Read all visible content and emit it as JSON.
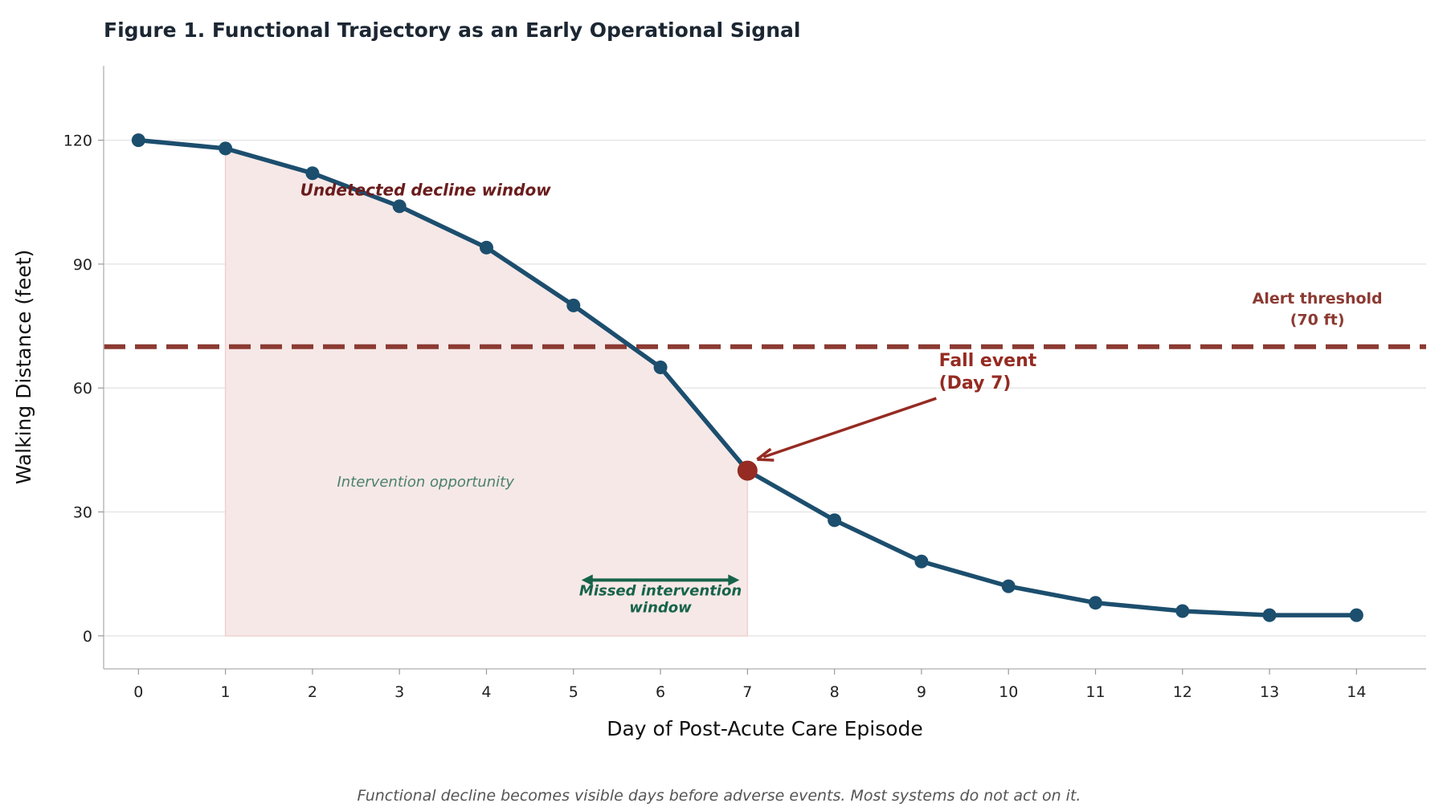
{
  "chart_data": {
    "type": "line",
    "title": "Figure 1.  Functional Trajectory as an Early Operational Signal",
    "xlabel": "Day of Post-Acute Care Episode",
    "ylabel": "Walking Distance (feet)",
    "x": [
      0,
      1,
      2,
      3,
      4,
      5,
      6,
      7,
      8,
      9,
      10,
      11,
      12,
      13,
      14
    ],
    "values": [
      120,
      118,
      112,
      104,
      94,
      80,
      65,
      40,
      28,
      18,
      12,
      8,
      6,
      5,
      5
    ],
    "xlim": [
      -0.4,
      14.8
    ],
    "ylim": [
      -8,
      138
    ],
    "xticks": [
      "0",
      "1",
      "2",
      "3",
      "4",
      "5",
      "6",
      "7",
      "8",
      "9",
      "10",
      "11",
      "12",
      "13",
      "14"
    ],
    "yticks": [
      "0",
      "30",
      "60",
      "90",
      "120"
    ],
    "grid": "horizontal",
    "threshold": {
      "value": 70,
      "label_line1": "Alert threshold",
      "label_line2": "(70 ft)",
      "color": "#8b3a32"
    },
    "shaded_region": {
      "from_day": 1,
      "to_day": 7,
      "color": "#f6e8e7"
    },
    "event": {
      "day": 7,
      "value": 40,
      "label_line1": "Fall event",
      "label_line2": "(Day 7)",
      "color": "#952b22"
    },
    "annotations": {
      "undetected": "Undetected decline window",
      "opportunity": "Intervention opportunity",
      "missed_line1": "Missed intervention",
      "missed_line2": "window",
      "missed_range": [
        5,
        7
      ]
    },
    "caption": "Functional decline becomes visible days before adverse events. Most systems do not act on it.",
    "colors": {
      "line": "#1c4e6e",
      "green": "#16634a",
      "dark_red": "#6a1c1c",
      "opportunity": "#4a8170"
    }
  }
}
